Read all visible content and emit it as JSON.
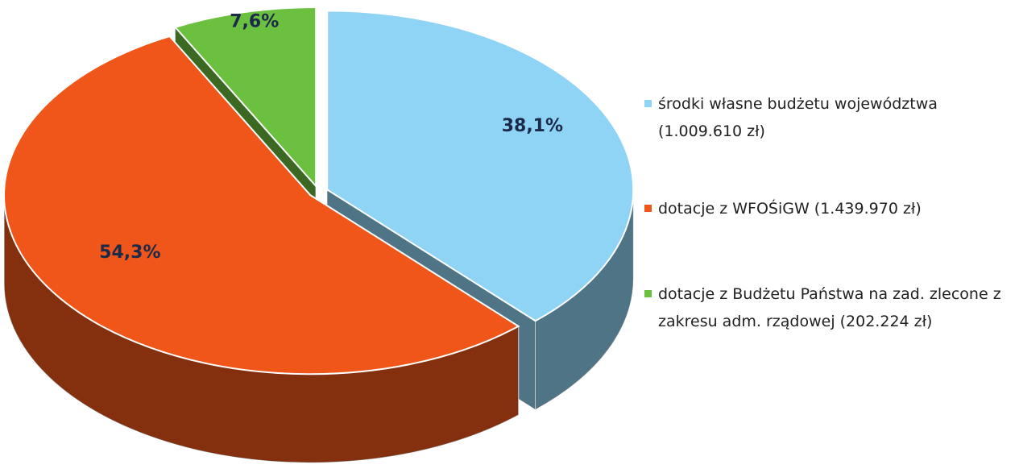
{
  "chart_data": {
    "type": "pie",
    "categories": [
      "środki własne budżetu województwa (1.009.610 zł)",
      "dotacje z WFOŚiGW (1.439.970 zł)",
      "dotacje z Budżetu Państwa na zad. zlecone z zakresu adm. rządowej (202.224 zł)"
    ],
    "values": [
      38.1,
      54.3,
      7.6
    ],
    "value_labels": [
      "38,1%",
      "54,3%",
      "7,6%"
    ],
    "colors": [
      "#8fd3f5",
      "#f0561a",
      "#6cc040"
    ],
    "legend": "right"
  }
}
